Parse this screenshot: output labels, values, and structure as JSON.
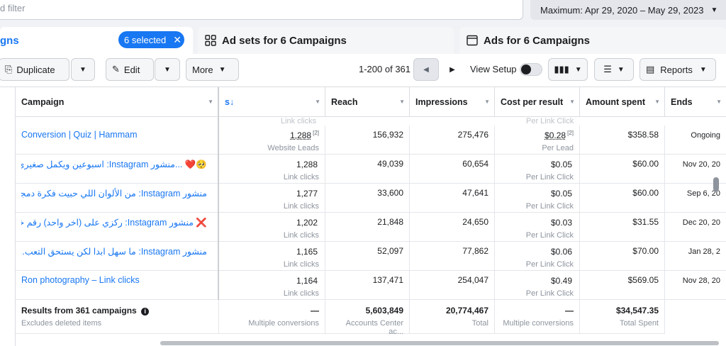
{
  "filter": {
    "placeholder": "d filter"
  },
  "date_range": {
    "label": "Maximum: Apr 29, 2020 – May 29, 2023"
  },
  "tabs": {
    "campaigns": {
      "label": "gns",
      "selected": "6 selected"
    },
    "adsets": {
      "label": "Ad sets for 6 Campaigns"
    },
    "ads": {
      "label": "Ads for 6 Campaigns"
    }
  },
  "toolbar": {
    "duplicate": "Duplicate",
    "edit": "Edit",
    "more": "More",
    "pager": "1-200 of 361",
    "view_setup": "View Setup",
    "reports": "Reports"
  },
  "columns": {
    "campaign": "Campaign",
    "results_arrow": "s↓",
    "reach": "Reach",
    "impressions": "Impressions",
    "cost": "Cost per result",
    "amount": "Amount spent",
    "ends": "Ends"
  },
  "ghost_row": {
    "results_sub": "Link clicks",
    "cost_sub": "Per Link Click"
  },
  "rows": [
    {
      "name": "Conversion | Quiz | Hammam",
      "results": "1,288",
      "results_note": "[2]",
      "results_sub": "Website Leads",
      "reach": "156,932",
      "impressions": "275,476",
      "cost": "$0.28",
      "cost_note": "[2]",
      "cost_sub": "Per Lead",
      "amount": "$358.58",
      "ends": "Ongoing"
    },
    {
      "name": "🥺❤️ ...منشور Instagram: اسبوعين ويكمل صغيري ٦ شهور",
      "results": "1,288",
      "results_note": "",
      "results_sub": "Link clicks",
      "reach": "49,039",
      "impressions": "60,654",
      "cost": "$0.05",
      "cost_note": "",
      "cost_sub": "Per Link Click",
      "amount": "$60.00",
      "ends": "Nov 20, 20"
    },
    {
      "name": "منشور Instagram: من الألوان اللي حبيت فكرة دمجهم...",
      "results": "1,277",
      "results_note": "",
      "results_sub": "Link clicks",
      "reach": "33,600",
      "impressions": "47,641",
      "cost": "$0.05",
      "cost_note": "",
      "cost_sub": "Per Link Click",
      "amount": "$60.00",
      "ends": "Sep 6, 20"
    },
    {
      "name": "❌ منشور Instagram: ركزي على (اخر واحد) رقم خمسة",
      "results": "1,202",
      "results_note": "",
      "results_sub": "Link clicks",
      "reach": "21,848",
      "impressions": "24,650",
      "cost": "$0.03",
      "cost_note": "",
      "cost_sub": "Per Link Click",
      "amount": "$31.55",
      "ends": "Dec 20, 20"
    },
    {
      "name": "منشور Instagram: ما سهل ابدا لكن يستحق التعب...",
      "results": "1,165",
      "results_note": "",
      "results_sub": "Link clicks",
      "reach": "52,097",
      "impressions": "77,862",
      "cost": "$0.06",
      "cost_note": "",
      "cost_sub": "Per Link Click",
      "amount": "$70.00",
      "ends": "Jan 28, 2"
    },
    {
      "name": "Ron photography – Link clicks",
      "results": "1,164",
      "results_note": "",
      "results_sub": "Link clicks",
      "reach": "137,471",
      "impressions": "254,047",
      "cost": "$0.49",
      "cost_note": "",
      "cost_sub": "Per Link Click",
      "amount": "$569.05",
      "ends": "Nov 28, 20"
    }
  ],
  "footer": {
    "title": "Results from 361 campaigns",
    "title_sub": "Excludes deleted items",
    "results": "—",
    "results_sub": "Multiple conversions",
    "reach": "5,603,849",
    "reach_sub": "Accounts Center ac...",
    "impressions": "20,774,467",
    "impressions_sub": "Total",
    "cost": "—",
    "cost_sub": "Multiple conversions",
    "amount": "$34,547.35",
    "amount_sub": "Total Spent"
  }
}
